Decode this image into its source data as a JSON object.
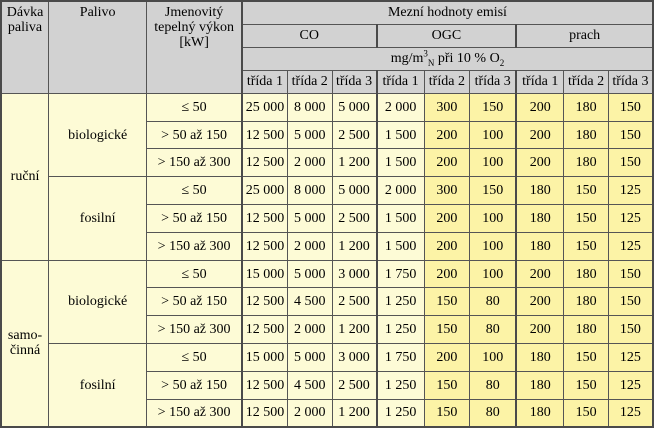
{
  "header": {
    "feed": "Dávka paliva",
    "fuel": "Palivo",
    "power": "Jmenovitý tepelný výkon [kW]",
    "limits": "Mezní hodnoty emisí",
    "pollutants": [
      "CO",
      "OGC",
      "prach"
    ],
    "unit_prefix": "mg/m",
    "unit_sup": "3",
    "unit_sub": "N",
    "unit_mid": " při 10 % O",
    "unit_o2_sub": "2",
    "classes": [
      "třída 1",
      "třída 2",
      "třída 3"
    ]
  },
  "colors": {
    "header": "#d2d2d2",
    "row_gray": "#fdfbd6",
    "value_yellow": "#fcf3a6"
  },
  "groups": [
    {
      "feed": "ruční",
      "fuels": [
        {
          "name": "biologické",
          "rows": [
            {
              "power": "≤ 50",
              "co": [
                "25 000",
                "8 000",
                "5 000"
              ],
              "ogc": [
                "2 000",
                "300",
                "150"
              ],
              "dust": [
                "200",
                "180",
                "150"
              ]
            },
            {
              "power": "> 50 až 150",
              "co": [
                "12 500",
                "5 000",
                "2 500"
              ],
              "ogc": [
                "1 500",
                "200",
                "100"
              ],
              "dust": [
                "200",
                "180",
                "150"
              ]
            },
            {
              "power": "> 150 až 300",
              "co": [
                "12 500",
                "2 000",
                "1 200"
              ],
              "ogc": [
                "1 500",
                "200",
                "100"
              ],
              "dust": [
                "200",
                "180",
                "150"
              ]
            }
          ]
        },
        {
          "name": "fosilní",
          "rows": [
            {
              "power": "≤ 50",
              "co": [
                "25 000",
                "8 000",
                "5 000"
              ],
              "ogc": [
                "2 000",
                "300",
                "150"
              ],
              "dust": [
                "180",
                "150",
                "125"
              ]
            },
            {
              "power": "> 50 až 150",
              "co": [
                "12 500",
                "5 000",
                "2 500"
              ],
              "ogc": [
                "1 500",
                "200",
                "100"
              ],
              "dust": [
                "180",
                "150",
                "125"
              ]
            },
            {
              "power": "> 150 až 300",
              "co": [
                "12 500",
                "2 000",
                "1 200"
              ],
              "ogc": [
                "1 500",
                "200",
                "100"
              ],
              "dust": [
                "180",
                "150",
                "125"
              ]
            }
          ]
        }
      ]
    },
    {
      "feed": "samo-činná",
      "fuels": [
        {
          "name": "biologické",
          "rows": [
            {
              "power": "≤ 50",
              "co": [
                "15 000",
                "5 000",
                "3 000"
              ],
              "ogc": [
                "1 750",
                "200",
                "100"
              ],
              "dust": [
                "200",
                "180",
                "150"
              ]
            },
            {
              "power": "> 50 až 150",
              "co": [
                "12 500",
                "4 500",
                "2 500"
              ],
              "ogc": [
                "1 250",
                "150",
                "80"
              ],
              "dust": [
                "200",
                "180",
                "150"
              ]
            },
            {
              "power": "> 150 až 300",
              "co": [
                "12 500",
                "2 000",
                "1 200"
              ],
              "ogc": [
                "1 250",
                "150",
                "80"
              ],
              "dust": [
                "200",
                "180",
                "150"
              ]
            }
          ]
        },
        {
          "name": "fosilní",
          "rows": [
            {
              "power": "≤ 50",
              "co": [
                "15 000",
                "5 000",
                "3 000"
              ],
              "ogc": [
                "1 750",
                "200",
                "100"
              ],
              "dust": [
                "180",
                "150",
                "125"
              ]
            },
            {
              "power": "> 50 až 150",
              "co": [
                "12 500",
                "4 500",
                "2 500"
              ],
              "ogc": [
                "1 250",
                "150",
                "80"
              ],
              "dust": [
                "180",
                "150",
                "125"
              ]
            },
            {
              "power": "> 150 až 300",
              "co": [
                "12 500",
                "2 000",
                "1 200"
              ],
              "ogc": [
                "1 250",
                "150",
                "80"
              ],
              "dust": [
                "180",
                "150",
                "125"
              ]
            }
          ]
        }
      ]
    }
  ]
}
